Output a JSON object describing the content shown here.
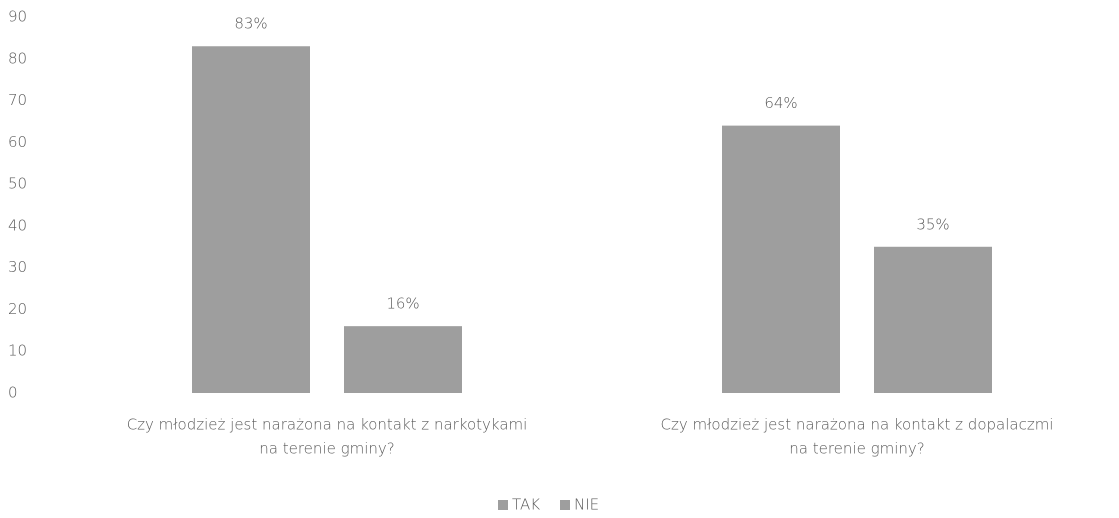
{
  "chart_data": {
    "type": "bar",
    "categories": [
      [
        "Czy młodzież jest narażona na kontakt z narkotykami",
        "na terenie gminy?"
      ],
      [
        "Czy młodzież jest narażona na kontakt z dopalaczmi",
        "na terenie gminy?"
      ]
    ],
    "series": [
      {
        "name": "TAK",
        "color": "#9e9e9e",
        "values": [
          83,
          64
        ],
        "value_labels": [
          "83%",
          "64%"
        ]
      },
      {
        "name": "NIE",
        "color": "#9e9e9e",
        "values": [
          16,
          35
        ],
        "value_labels": [
          "16%",
          "35%"
        ]
      }
    ],
    "ylim": [
      0,
      90
    ],
    "yticks": [
      0,
      10,
      20,
      30,
      40,
      50,
      60,
      70,
      80,
      90
    ],
    "grid": false,
    "legend": "bottom"
  }
}
